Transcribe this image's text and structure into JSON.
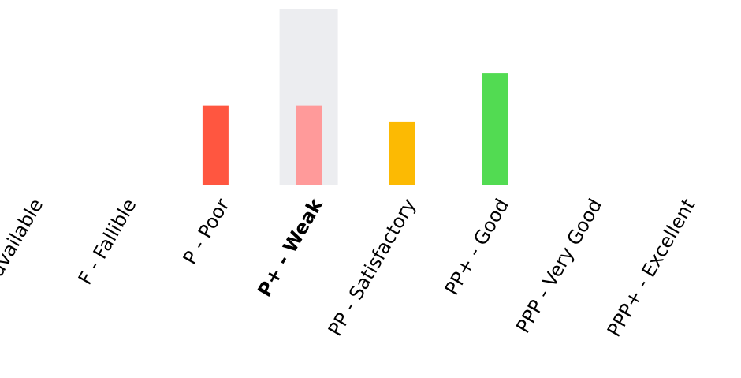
{
  "chart_data": {
    "type": "bar",
    "title": "",
    "xlabel": "",
    "ylabel": "",
    "ylim": [
      0,
      11
    ],
    "grid": false,
    "categories": [
      "ND - Unavailable",
      "F - Fallible",
      "P - Poor",
      "P+ - Weak",
      "PP - Satisfactory",
      "PP+ - Good",
      "PPP - Very Good",
      "PPP+ - Excellent"
    ],
    "values": [
      0,
      0,
      5,
      5,
      4,
      7,
      0,
      0
    ],
    "colors": [
      "#ff5640",
      "#ff5640",
      "#ff5640",
      "#ff9a9a",
      "#fcba03",
      "#52db52",
      "#52db52",
      "#52db52"
    ],
    "selected_index": 3,
    "highlight_color": "#ecedf0"
  }
}
